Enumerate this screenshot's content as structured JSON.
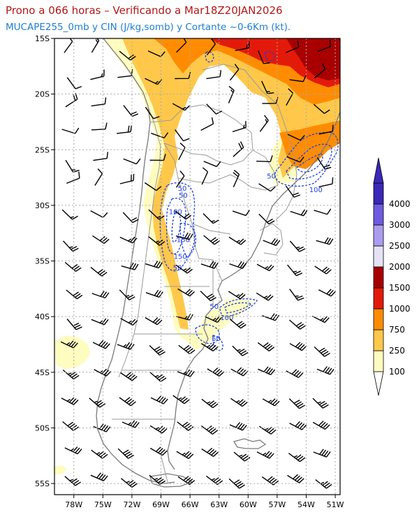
{
  "header": {
    "title": "Prono a 066 horas – Verificando a Mar18Z20JAN2026",
    "subtitle": "MUCAPE255_0mb y CIN (J/kg,somb) y Cortante ~0-6Km (kt)."
  },
  "map": {
    "lat_range": [
      -56,
      -15
    ],
    "lon_range": [
      -80,
      -50.5
    ],
    "lat_ticks": [
      {
        "value": -15,
        "label": "15S"
      },
      {
        "value": -20,
        "label": "20S"
      },
      {
        "value": -25,
        "label": "25S"
      },
      {
        "value": -30,
        "label": "30S"
      },
      {
        "value": -35,
        "label": "35S"
      },
      {
        "value": -40,
        "label": "40S"
      },
      {
        "value": -45,
        "label": "45S"
      },
      {
        "value": -50,
        "label": "50S"
      },
      {
        "value": -55,
        "label": "55S"
      }
    ],
    "lon_ticks": [
      {
        "value": -78,
        "label": "78W"
      },
      {
        "value": -75,
        "label": "75W"
      },
      {
        "value": -72,
        "label": "72W"
      },
      {
        "value": -69,
        "label": "69W"
      },
      {
        "value": -66,
        "label": "66W"
      },
      {
        "value": -63,
        "label": "63W"
      },
      {
        "value": -60,
        "label": "60W"
      },
      {
        "value": -57,
        "label": "57W"
      },
      {
        "value": -54,
        "label": "54W"
      },
      {
        "value": -51,
        "label": "51W"
      }
    ],
    "cin_labels": [
      {
        "text": "50",
        "lon": -66.8,
        "lat": -28.7
      },
      {
        "text": "50",
        "lon": -66.7,
        "lat": -29.3
      },
      {
        "text": "100",
        "lon": -67.5,
        "lat": -30.8
      },
      {
        "text": "150",
        "lon": -66.7,
        "lat": -33.3
      },
      {
        "text": "150",
        "lon": -67.0,
        "lat": -34.8
      },
      {
        "text": "50",
        "lon": -67.3,
        "lat": -35.8
      },
      {
        "text": "50",
        "lon": -63.5,
        "lat": -39.3
      },
      {
        "text": "100",
        "lon": -62.2,
        "lat": -40.3
      },
      {
        "text": "50",
        "lon": -63.3,
        "lat": -42.2
      },
      {
        "text": "50",
        "lon": -57.6,
        "lat": -27.6
      },
      {
        "text": "100",
        "lon": -53.0,
        "lat": -28.8
      }
    ]
  },
  "legend": {
    "colors": [
      "#fffcc0",
      "#ffc84b",
      "#ff8c00",
      "#e31a0a",
      "#a80000",
      "#e4e2f4",
      "#ac9cef",
      "#6e5be0",
      "#3a28b8"
    ],
    "labels": [
      "100",
      "250",
      "750",
      "1000",
      "1500",
      "2000",
      "2500",
      "3000",
      "4000"
    ]
  },
  "style": {
    "grid_color": "#aaaaaa",
    "coast_color": "#7a7a7a",
    "cin_color": "#1f3fe0",
    "barb_color": "#000000"
  }
}
